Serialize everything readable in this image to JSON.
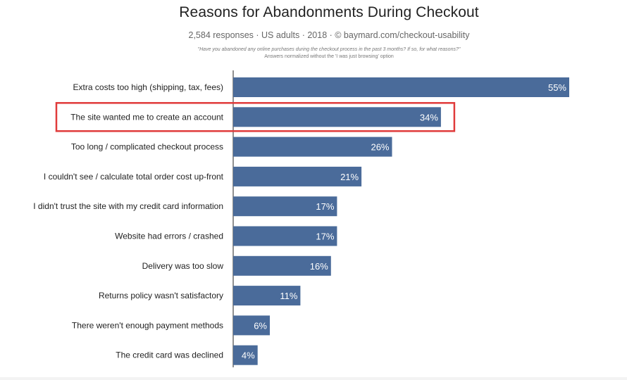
{
  "chart_data": {
    "type": "bar",
    "orientation": "horizontal",
    "title": "Reasons for Abandonments During Checkout",
    "subtitle": "2,584 responses  ·  US adults  ·  2018  ·  ©  baymard.com/checkout-usability",
    "question": "\"Have you abandoned any online purchases during the checkout process in the past 3 months? If so, for what reasons?\"",
    "note": "Answers normalized without the 'I was just browsing' option",
    "categories": [
      "Extra costs too high (shipping, tax, fees)",
      "The site wanted me to create an account",
      "Too long / complicated checkout process",
      "I couldn't see / calculate total order cost up-front",
      "I didn't trust the site with my credit card information",
      "Website had errors / crashed",
      "Delivery was too slow",
      "Returns policy wasn't satisfactory",
      "There weren't enough payment methods",
      "The credit card was declined"
    ],
    "values": [
      55,
      34,
      26,
      21,
      17,
      17,
      16,
      11,
      6,
      4
    ],
    "value_labels": [
      "55%",
      "34%",
      "26%",
      "21%",
      "17%",
      "17%",
      "16%",
      "11%",
      "6%",
      "4%"
    ],
    "unit": "%",
    "xlim": [
      0,
      55
    ],
    "highlighted_index": 1,
    "colors": {
      "bar": "#4a6b9a",
      "highlight_box": "#e03b3b",
      "axis": "#222222"
    },
    "grid": false,
    "legend": "none"
  }
}
